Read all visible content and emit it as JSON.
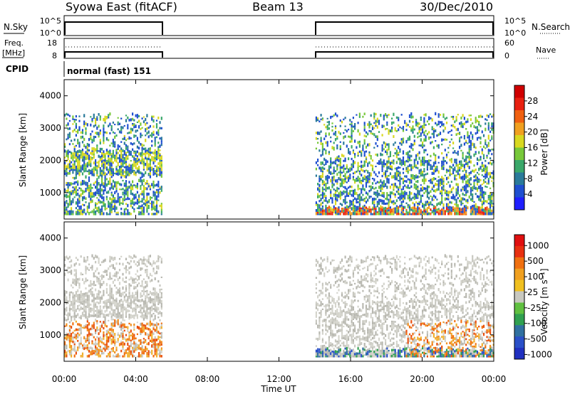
{
  "header": {
    "station": "Syowa East (fitACF)",
    "beam": "Beam 13",
    "date": "30/Dec/2010"
  },
  "status_panels": {
    "nsky_label": "N.Sky",
    "nsky_ticks": [
      "10^5",
      "10^0"
    ],
    "nsearch_label": "N.Search",
    "nsearch_ticks": [
      "10^5",
      "10^0"
    ],
    "freq_label_line1": "Freq.",
    "freq_label_line2": "[MHz]",
    "freq_ticks": [
      "18",
      "8"
    ],
    "nave_label": "Nave",
    "nave_ticks": [
      "60",
      "0"
    ],
    "cpid_label": "CPID",
    "cpid_text": "normal (fast) 151"
  },
  "chart_data": [
    {
      "type": "heatmap",
      "name": "power-panel",
      "ylabel": "Slant Range [km]",
      "xlabel": "",
      "yticks": [
        1000,
        2000,
        3000,
        4000
      ],
      "ylim": [
        180,
        4500
      ],
      "xlim_hours": [
        0,
        24
      ],
      "data_gap_hours": [
        5.4,
        14.0
      ],
      "colorbar": {
        "label": "Power [dB]",
        "ticks": [
          "4",
          "8",
          "12",
          "16",
          "20",
          "24",
          "28"
        ],
        "colors": [
          "#1f1fff",
          "#1f4fd0",
          "#2a7a9a",
          "#3aa86a",
          "#77c83a",
          "#d8d820",
          "#f0a020",
          "#f06010",
          "#e82010",
          "#d00000"
        ]
      }
    },
    {
      "type": "heatmap",
      "name": "velocity-panel",
      "ylabel": "Slant Range [km]",
      "xlabel": "Time UT",
      "yticks": [
        1000,
        2000,
        3000,
        4000
      ],
      "ylim": [
        180,
        4500
      ],
      "xlim_hours": [
        0,
        24
      ],
      "data_gap_hours": [
        5.4,
        14.0
      ],
      "xticks": [
        "00:00",
        "04:00",
        "08:00",
        "12:00",
        "16:00",
        "20:00",
        "00:00"
      ],
      "colorbar": {
        "label": "Velocity [m s⁻¹]",
        "ticks": [
          "1000",
          "500",
          "100",
          "25",
          "-25",
          "-100",
          "-500",
          "-1000"
        ],
        "colors": [
          "#2030c0",
          "#2a50c8",
          "#3070a0",
          "#30a050",
          "#60c040",
          "#c8c8c0",
          "#f0c020",
          "#f0a020",
          "#f07010",
          "#e83010",
          "#e01010"
        ]
      }
    }
  ],
  "palettes": {
    "power_common": [
      "#1f4fd0",
      "#1f4fd0",
      "#2a7a9a",
      "#3aa86a",
      "#77c83a",
      "#d8d820"
    ],
    "power_hot": [
      "#f0a020",
      "#f06010",
      "#e82010"
    ],
    "vel_neutral": [
      "#c8c8c0",
      "#b8b8b0",
      "#d4d4cc"
    ],
    "vel_neg": [
      "#f09020",
      "#f07010",
      "#e85010",
      "#f0b030"
    ],
    "vel_pos": [
      "#30a050",
      "#3070a0",
      "#2a50c8"
    ]
  }
}
